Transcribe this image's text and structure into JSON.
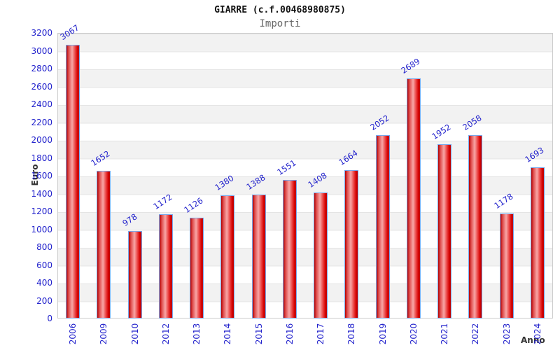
{
  "header": {
    "title": "GIARRE (c.f.00468980875)",
    "subtitle": "Importi"
  },
  "chart_data": {
    "type": "bar",
    "title": "GIARRE (c.f.00468980875)",
    "subtitle": "Importi",
    "xlabel": "Anno",
    "ylabel": "Euro",
    "categories": [
      "2006",
      "2009",
      "2010",
      "2012",
      "2013",
      "2014",
      "2015",
      "2016",
      "2017",
      "2018",
      "2019",
      "2020",
      "2021",
      "2022",
      "2023",
      "2024"
    ],
    "values": [
      3067,
      1652,
      978,
      1172,
      1126,
      1380,
      1388,
      1551,
      1408,
      1664,
      2052,
      2689,
      1952,
      2058,
      1178,
      1693
    ],
    "ylim": [
      0,
      3200
    ],
    "ytick_step": 200,
    "grid": "horizontal-bands",
    "legend": "none",
    "colors": {
      "bar_fill": "#e01010",
      "bar_highlight": "#f8a6a6",
      "bar_border": "#77aaee",
      "tick_text": "#2222cc",
      "value_label_text": "#2222cc",
      "axis_label_text": "#333333",
      "band_fill": "#f2f2f2",
      "plot_border": "#cccccc"
    }
  }
}
